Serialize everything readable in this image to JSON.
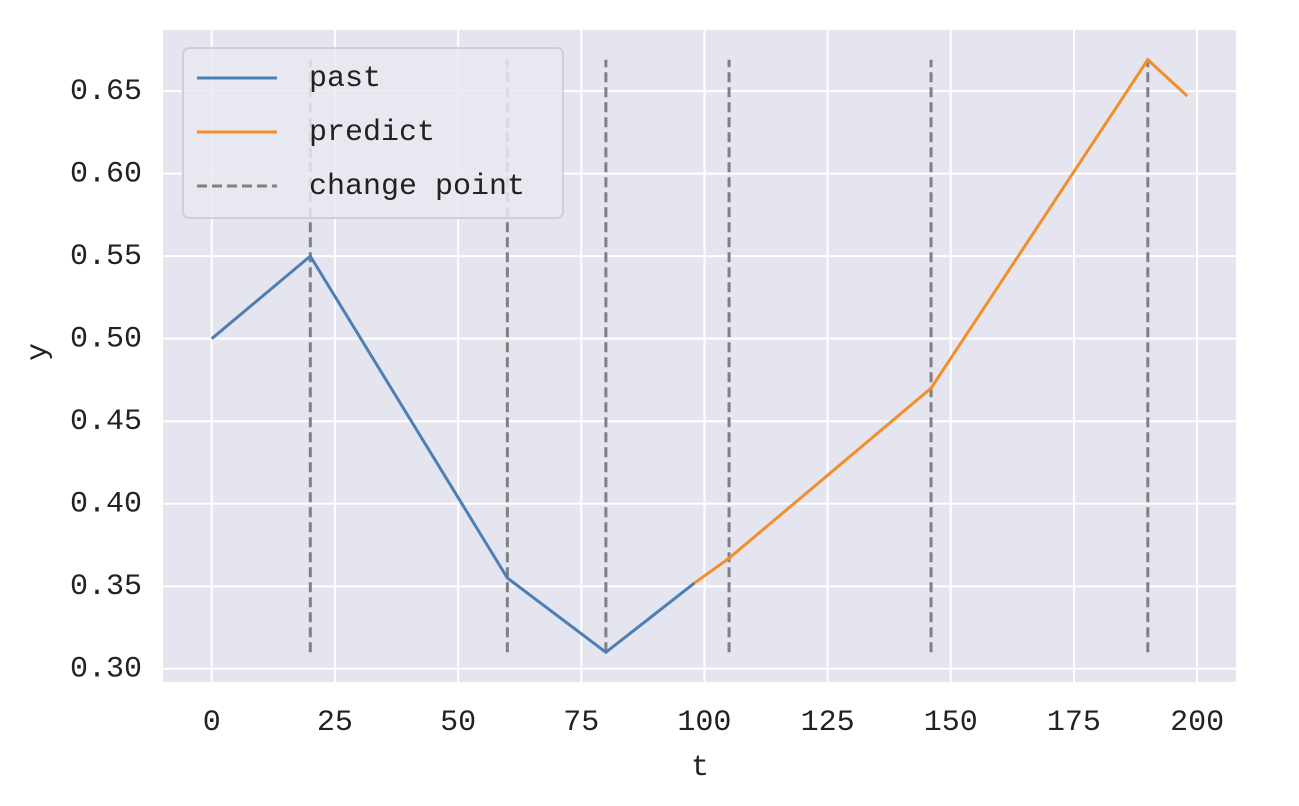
{
  "chart_data": {
    "type": "line",
    "xlabel": "t",
    "ylabel": "y",
    "series": [
      {
        "name": "past",
        "color": "#4c7fb4",
        "x": [
          0,
          20,
          60,
          80,
          98
        ],
        "values": [
          0.5,
          0.55,
          0.355,
          0.31,
          0.352
        ]
      },
      {
        "name": "predict",
        "color": "#f28e2b",
        "x": [
          98,
          105,
          146,
          190,
          198
        ],
        "values": [
          0.352,
          0.367,
          0.47,
          0.669,
          0.647
        ]
      }
    ],
    "change_points": {
      "name": "change point",
      "color": "#808080",
      "x": [
        20,
        60,
        80,
        105,
        146,
        190
      ],
      "ymin": 0.31,
      "ymax": 0.669
    },
    "xlim": [
      -9.9,
      207.9
    ],
    "ylim": [
      0.292,
      0.687
    ],
    "xticks": [
      0,
      25,
      50,
      75,
      100,
      125,
      150,
      175,
      200
    ],
    "yticks": [
      {
        "value": 0.3,
        "label": "0.30"
      },
      0.35,
      {
        "value": 0.4,
        "label": "0.40"
      },
      0.45,
      {
        "value": 0.5,
        "label": "0.50"
      },
      0.55,
      {
        "value": 0.6,
        "label": "0.60"
      },
      0.65
    ],
    "grid": true,
    "legend": "upper left"
  }
}
